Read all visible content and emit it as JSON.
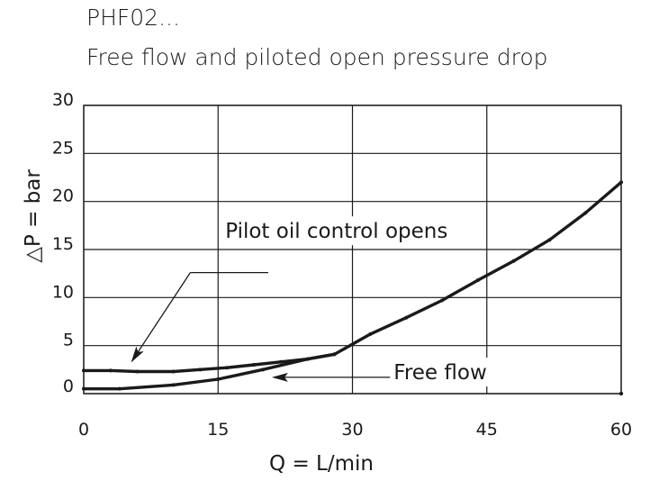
{
  "chart_data": {
    "type": "line",
    "title": "PHF02...",
    "subtitle": "Free flow and piloted open pressure drop",
    "xlabel": "Q = L/min",
    "ylabel": "△P = bar",
    "xlim": [
      0,
      60
    ],
    "ylim": [
      0,
      30
    ],
    "xticks": [
      0,
      15,
      30,
      45,
      60
    ],
    "yticks": [
      0,
      5,
      10,
      15,
      20,
      25,
      30
    ],
    "xtick_labels": [
      "0",
      "15",
      "30",
      "45",
      "60"
    ],
    "ytick_labels": [
      "0",
      "5",
      "10",
      "15",
      "20",
      "25",
      "30"
    ],
    "grid": true,
    "legend": "none",
    "series": [
      {
        "points": [
          [
            0,
            2.4
          ],
          [
            3,
            2.4
          ],
          [
            6,
            2.3
          ],
          [
            10,
            2.3
          ],
          [
            13,
            2.5
          ],
          [
            16,
            2.7
          ],
          [
            19,
            3.0
          ],
          [
            22,
            3.3
          ],
          [
            25,
            3.6
          ],
          [
            28,
            4.1
          ],
          [
            32,
            6.2
          ],
          [
            36,
            7.9
          ],
          [
            40,
            9.7
          ],
          [
            44,
            11.8
          ],
          [
            48,
            13.8
          ],
          [
            52,
            16.0
          ],
          [
            56,
            18.8
          ],
          [
            60,
            22.0
          ]
        ]
      },
      {
        "points": [
          [
            0,
            0.5
          ],
          [
            4,
            0.5
          ],
          [
            10,
            0.9
          ],
          [
            15,
            1.5
          ],
          [
            20,
            2.5
          ],
          [
            25,
            3.6
          ],
          [
            28,
            4.1
          ]
        ]
      }
    ],
    "annotations": [
      {
        "text": "Pilot oil control opens",
        "x": 15.8,
        "y": 16.2,
        "arrow_line": [
          [
            20.6,
            12.6
          ],
          [
            11.9,
            12.6
          ]
        ],
        "arrow_to": [
          5.4,
          3.4
        ]
      },
      {
        "text": "Free flow",
        "x": 34.6,
        "y": 1.5,
        "arrow_from": [
          34.2,
          1.7
        ],
        "arrow_to": [
          21.2,
          1.7
        ]
      }
    ],
    "line_color": "#1a1a1a",
    "grid_color": "#1a1a1a"
  }
}
